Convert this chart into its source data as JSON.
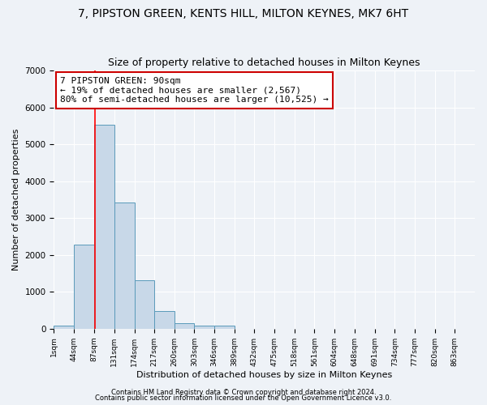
{
  "title": "7, PIPSTON GREEN, KENTS HILL, MILTON KEYNES, MK7 6HT",
  "subtitle": "Size of property relative to detached houses in Milton Keynes",
  "xlabel": "Distribution of detached houses by size in Milton Keynes",
  "ylabel": "Number of detached properties",
  "bin_edges": [
    1,
    44,
    87,
    131,
    174,
    217,
    260,
    303,
    346,
    389,
    432,
    475,
    518,
    561,
    604,
    648,
    691,
    734,
    777,
    820,
    863
  ],
  "bar_heights": [
    75,
    2270,
    5540,
    3430,
    1310,
    470,
    160,
    80,
    80,
    0,
    0,
    0,
    0,
    0,
    0,
    0,
    0,
    0,
    0,
    0
  ],
  "bar_color": "#c8d8e8",
  "bar_edge_color": "#5a9aba",
  "red_line_x": 90,
  "annotation_line1": "7 PIPSTON GREEN: 90sqm",
  "annotation_line2": "← 19% of detached houses are smaller (2,567)",
  "annotation_line3": "80% of semi-detached houses are larger (10,525) →",
  "annotation_box_color": "#ffffff",
  "annotation_edge_color": "#cc0000",
  "ylim": [
    0,
    7000
  ],
  "yticks": [
    0,
    1000,
    2000,
    3000,
    4000,
    5000,
    6000,
    7000
  ],
  "tick_labels": [
    "1sqm",
    "44sqm",
    "87sqm",
    "131sqm",
    "174sqm",
    "217sqm",
    "260sqm",
    "303sqm",
    "346sqm",
    "389sqm",
    "432sqm",
    "475sqm",
    "518sqm",
    "561sqm",
    "604sqm",
    "648sqm",
    "691sqm",
    "734sqm",
    "777sqm",
    "820sqm",
    "863sqm"
  ],
  "footer_text1": "Contains HM Land Registry data © Crown copyright and database right 2024.",
  "footer_text2": "Contains public sector information licensed under the Open Government Licence v3.0.",
  "bg_color": "#eef2f7",
  "grid_color": "#ffffff",
  "title_fontsize": 10,
  "subtitle_fontsize": 9,
  "label_fontsize": 8,
  "annotation_fontsize": 8,
  "footer_fontsize": 6
}
